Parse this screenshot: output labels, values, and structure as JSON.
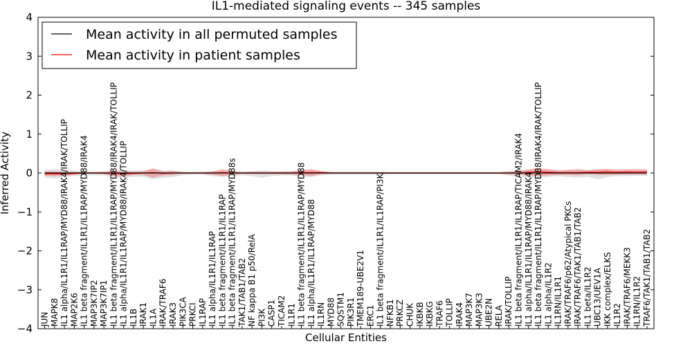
{
  "chart_data": {
    "type": "line",
    "title": "IL1-mediated signaling events -- 345 samples",
    "xlabel": "Cellular Entities",
    "ylabel": "Inferred Activity",
    "ylim": [
      -4,
      4
    ],
    "yticks": [
      -4,
      -3,
      -2,
      -1,
      0,
      1,
      2,
      3,
      4
    ],
    "ytick_labels": [
      "−4",
      "−3",
      "−2",
      "−1",
      "0",
      "1",
      "2",
      "3",
      "4"
    ],
    "grid": false,
    "legend_position": "top-left",
    "categories": [
      "JUN",
      "MAPK8",
      "IL1 alpha/IL1R1/IL1RAP/MYD88/IRAK4/IRAK/TOLLIP",
      "MAP2K6",
      "IL1 beta fragment/IL1R1/IL1RAP/MYD88/IRAK4",
      "MAP3K7IP2",
      "MAP3K7IP1",
      "IL1 beta fragment/IL1R1/IL1RAP/MYD88/IRAK4/IRAK/TOLLIP",
      "IL1 alpha/IL1R1/IL1RAP/MYD88/IRAK4/TOLLIP",
      "IL1B",
      "IRAK1",
      "IL1A",
      "IRAK/TRAF6",
      "IRAK3",
      "PIK3CA",
      "PRKCI",
      "IL1RAP",
      "IL1 alpha/IL1R1/IL1RAP",
      "IL1 beta fragment/IL1R1/IL1RAP",
      "IL1 beta fragment/IL1R1/IL1RAP/MYD88s",
      "TAK1/TAB1/TAB2",
      "NF kappa B1 p50/RelA",
      "PI3K",
      "CASP1",
      "TICAM2",
      "IL1R1",
      "IL1 beta fragment/IL1R1/IL1RAP/MYD88",
      "IL1 alpha/IL1R1/IL1RAP/MYD88",
      "IL1RN",
      "MYD88",
      "SQSTM1",
      "PIK3R1",
      "TMEM189-UBE2V1",
      "ERC1",
      "IL1 beta fragment/IL1R1/IL1RAP/PI3K",
      "NFKB1",
      "PRKCZ",
      "CHUK",
      "IKBKB",
      "IKBKG",
      "TRAF6",
      "TOLLIP",
      "IRAK4",
      "MAP3K7",
      "MAP3K3",
      "UBE2N",
      "RELA",
      "IRAK/TOLLIP",
      "IL1 beta fragment/IL1R1/IL1RAP/TICAM2/IRAK4",
      "IL1 alpha/IL1R1/IL1RAP/MYD88/IRAK4",
      "IL1 beta fragment/IL1R1/IL1RAP/MYD88/IRAK4/IRAK/TOLLIP",
      "IL1 alpha/IL1R2",
      "IL1RN/IL1R1",
      "IRAK/TRAF6/p62/Atypical PKCs",
      "IRAK/TRAF6/TAK1/TAB1/TAB2",
      "IL1 beta/IL1R2",
      "UBC13/UEV1A",
      "IKK complex/ELKS",
      "IL1R2",
      "IRAK/TRAF6/MEKK3",
      "IL1RN/IL1R2",
      "TRAF6/TAK1/TAB1/TAB2"
    ],
    "series": [
      {
        "name": "Mean activity in all permuted samples",
        "color": "#000000",
        "values": [
          0,
          0,
          0,
          0,
          0,
          0,
          0,
          0,
          0,
          0,
          0,
          0,
          0,
          0,
          0,
          0,
          0,
          0,
          0,
          0,
          0,
          0,
          0,
          0,
          0,
          0,
          0,
          0,
          0,
          0,
          0,
          0,
          0,
          0,
          0,
          0,
          0,
          0,
          0,
          0,
          0,
          0,
          0,
          0,
          0,
          0,
          0,
          0,
          0,
          0,
          0,
          0,
          0,
          0,
          0,
          0,
          0,
          0,
          0,
          0,
          0,
          0
        ],
        "band_upper": [
          0.08,
          0.1,
          0.08,
          0.06,
          0.04,
          0.04,
          0.04,
          0.06,
          0.08,
          0.06,
          0.06,
          0.1,
          0.06,
          0.06,
          0.04,
          0.03,
          0.03,
          0.05,
          0.07,
          0.05,
          0.04,
          0.05,
          0.07,
          0.05,
          0.05,
          0.05,
          0.08,
          0.08,
          0.05,
          0.04,
          0.03,
          0.03,
          0.03,
          0.03,
          0.03,
          0.02,
          0.02,
          0.02,
          0.02,
          0.02,
          0.02,
          0.02,
          0.02,
          0.02,
          0.02,
          0.02,
          0.02,
          0.05,
          0.06,
          0.08,
          0.1,
          0.08,
          0.06,
          0.08,
          0.08,
          0.08,
          0.1,
          0.08,
          0.06,
          0.06,
          0.05,
          0.06
        ],
        "band_lower": [
          -0.12,
          -0.14,
          -0.1,
          -0.08,
          -0.06,
          -0.06,
          -0.06,
          -0.1,
          -0.12,
          -0.1,
          -0.1,
          -0.16,
          -0.12,
          -0.1,
          -0.06,
          -0.04,
          -0.04,
          -0.08,
          -0.1,
          -0.08,
          -0.06,
          -0.08,
          -0.12,
          -0.08,
          -0.06,
          -0.06,
          -0.1,
          -0.1,
          -0.06,
          -0.05,
          -0.04,
          -0.04,
          -0.04,
          -0.04,
          -0.04,
          -0.03,
          -0.03,
          -0.03,
          -0.03,
          -0.03,
          -0.03,
          -0.03,
          -0.03,
          -0.03,
          -0.03,
          -0.03,
          -0.03,
          -0.06,
          -0.1,
          -0.12,
          -0.12,
          -0.1,
          -0.08,
          -0.1,
          -0.12,
          -0.1,
          -0.16,
          -0.1,
          -0.08,
          -0.08,
          -0.07,
          -0.08
        ]
      },
      {
        "name": "Mean activity in patient samples",
        "color": "#ff0000",
        "values": [
          -0.02,
          -0.02,
          -0.02,
          -0.01,
          0,
          0,
          0,
          -0.01,
          -0.02,
          -0.01,
          0,
          0.01,
          -0.01,
          0,
          0,
          0,
          0,
          0,
          0.01,
          0,
          0,
          0,
          0,
          0,
          0,
          0,
          0.01,
          0.01,
          0.01,
          0,
          0,
          0,
          0,
          0,
          0,
          0,
          0,
          0,
          0,
          0,
          0,
          0,
          0,
          0,
          0,
          0,
          0,
          0,
          0,
          0.02,
          0.03,
          0.02,
          0.01,
          0.01,
          0.01,
          0.02,
          0.02,
          0.03,
          0.02,
          0.03,
          0.03,
          0.03
        ],
        "band_upper": [
          0.04,
          0.04,
          0.03,
          0.03,
          0.02,
          0.02,
          0.03,
          0.06,
          0.04,
          0.03,
          0.05,
          0.12,
          0.04,
          0.06,
          0.02,
          0.02,
          0.02,
          0.04,
          0.1,
          0.05,
          0.02,
          0.03,
          0.03,
          0.03,
          0.03,
          0.04,
          0.07,
          0.1,
          0.05,
          0.02,
          0.02,
          0.02,
          0.02,
          0.02,
          0.02,
          0.02,
          0.02,
          0.02,
          0.02,
          0.02,
          0.02,
          0.02,
          0.02,
          0.02,
          0.02,
          0.02,
          0.02,
          0.03,
          0.05,
          0.09,
          0.13,
          0.1,
          0.07,
          0.08,
          0.1,
          0.07,
          0.09,
          0.11,
          0.09,
          0.1,
          0.1,
          0.1
        ],
        "band_lower": [
          -0.07,
          -0.08,
          -0.07,
          -0.05,
          -0.02,
          -0.02,
          -0.03,
          -0.08,
          -0.09,
          -0.05,
          -0.05,
          -0.12,
          -0.06,
          -0.05,
          -0.02,
          -0.02,
          -0.02,
          -0.04,
          -0.08,
          -0.05,
          -0.02,
          -0.03,
          -0.03,
          -0.03,
          -0.03,
          -0.04,
          -0.05,
          -0.08,
          -0.03,
          -0.02,
          -0.02,
          -0.02,
          -0.02,
          -0.02,
          -0.02,
          -0.02,
          -0.02,
          -0.02,
          -0.02,
          -0.02,
          -0.02,
          -0.02,
          -0.02,
          -0.02,
          -0.02,
          -0.02,
          -0.02,
          -0.03,
          -0.05,
          -0.06,
          -0.08,
          -0.06,
          -0.05,
          -0.05,
          -0.06,
          -0.03,
          -0.05,
          -0.05,
          -0.04,
          -0.04,
          -0.04,
          -0.04
        ]
      }
    ]
  }
}
